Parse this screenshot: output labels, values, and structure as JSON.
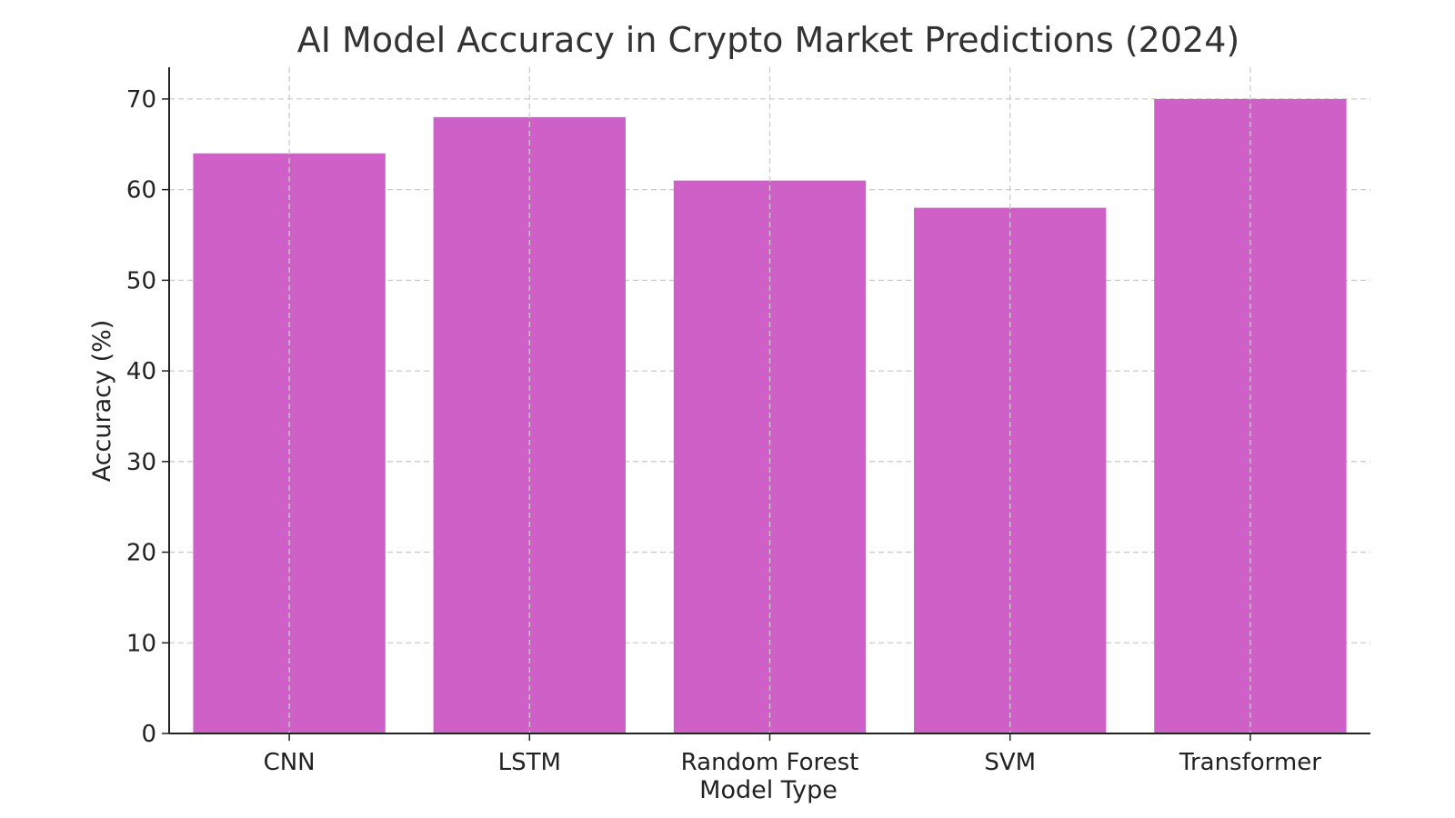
{
  "chart_data": {
    "type": "bar",
    "title": "AI Model Accuracy in Crypto Market Predictions (2024)",
    "xlabel": "Model Type",
    "ylabel": "Accuracy (%)",
    "categories": [
      "CNN",
      "LSTM",
      "Random Forest",
      "SVM",
      "Transformer"
    ],
    "values": [
      64,
      68,
      61,
      58,
      70
    ],
    "ylim": [
      0,
      73.5
    ],
    "yticks": [
      0,
      10,
      20,
      30,
      40,
      50,
      60,
      70
    ],
    "grid": true,
    "bar_color": "#cf60c8",
    "legend": "none"
  }
}
